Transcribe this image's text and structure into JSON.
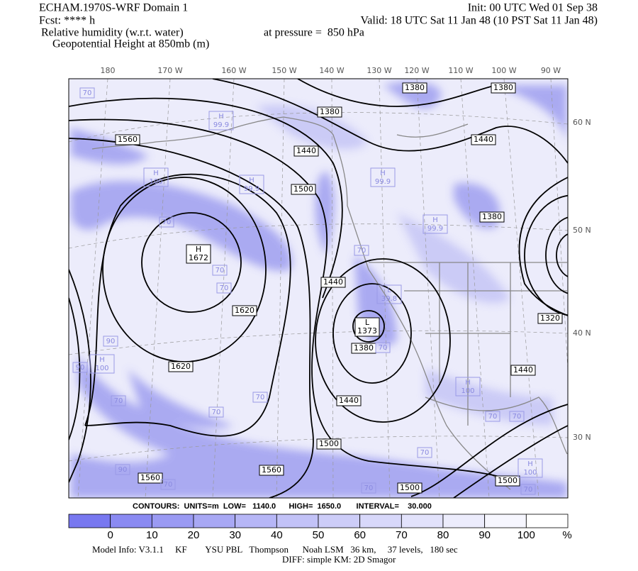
{
  "header": {
    "title": "ECHAM.1970S-WRF Domain 1",
    "forecast": "Fcst: **** h",
    "field1": "Relative humidity (w.r.t. water)",
    "field2": "Geopotential Height at 850mb (m)",
    "init": "Init: 00 UTC Wed 01 Sep 38",
    "valid": "Valid: 18 UTC Sat 11 Jan 48 (10 PST Sat 11 Jan 48)",
    "pressure": "at pressure =  850 hPa"
  },
  "map": {
    "lon_labels": [
      "180",
      "170 W",
      "160 W",
      "150 W",
      "140 W",
      "130 W",
      "120 W",
      "110 W",
      "100 W",
      "90 W"
    ],
    "lat_labels": [
      "60 N",
      "50 N",
      "40 N",
      "30 N"
    ],
    "contour_labels": [
      "1380",
      "1380",
      "1380",
      "1560",
      "1440",
      "1440",
      "1500",
      "1380",
      "1440",
      "1620",
      "1320",
      "1380",
      "1620",
      "1440",
      "1440",
      "1500",
      "1560",
      "1560",
      "1500",
      "1500"
    ],
    "centers": [
      {
        "kind": "H",
        "value": "1672"
      },
      {
        "kind": "L",
        "value": "1373"
      },
      {
        "kind": "H",
        "value": "99.9"
      },
      {
        "kind": "H",
        "value": "100"
      },
      {
        "kind": "H",
        "value": "99.9"
      },
      {
        "kind": "H",
        "value": "99.9"
      },
      {
        "kind": "H",
        "value": "99.9"
      },
      {
        "kind": "L",
        "value": "39.8"
      },
      {
        "kind": "H",
        "value": "100"
      },
      {
        "kind": "H",
        "value": "100"
      },
      {
        "kind": "H",
        "value": "100"
      }
    ],
    "rh_labels": [
      "70",
      "70",
      "70",
      "70",
      "90",
      "90",
      "70",
      "70",
      "70",
      "70",
      "70",
      "90",
      "70",
      "70",
      "70",
      "70",
      "70",
      "70"
    ]
  },
  "contours_info": "CONTOURS:  UNITS=m  LOW=   1140.0      HIGH=  1650.0       INTERVAL=    30.000",
  "colorbar": {
    "labels": [
      "0",
      "10",
      "20",
      "30",
      "40",
      "50",
      "60",
      "70",
      "80",
      "90",
      "100"
    ],
    "unit": "%"
  },
  "footer": {
    "line1": "Model Info: V3.1.1     KF        YSU PBL   Thompson      Noah LSM   36 km,     37 levels,   180 sec",
    "line2": "DIFF: simple KM: 2D Smagor"
  }
}
